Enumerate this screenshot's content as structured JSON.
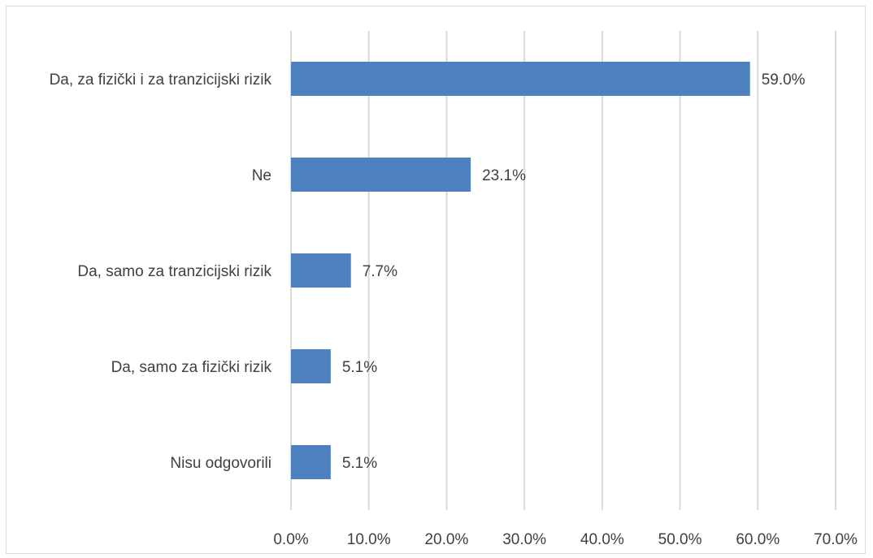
{
  "chart_data": {
    "type": "bar",
    "orientation": "horizontal",
    "categories": [
      "Da, za fizički i za tranzicijski rizik",
      "Ne",
      "Da, samo za tranzicijski rizik",
      "Da, samo za fizički rizik",
      "Nisu odgovorili"
    ],
    "values": [
      59.0,
      23.1,
      7.7,
      5.1,
      5.1
    ],
    "data_labels": [
      "59.0%",
      "23.1%",
      "7.7%",
      "5.1%",
      "5.1%"
    ],
    "xlim": [
      0,
      70
    ],
    "x_ticks": [
      0,
      10,
      20,
      30,
      40,
      50,
      60,
      70
    ],
    "x_tick_labels": [
      "0.0%",
      "10.0%",
      "20.0%",
      "30.0%",
      "40.0%",
      "50.0%",
      "60.0%",
      "70.0%"
    ],
    "grid": "vertical",
    "legend": "none",
    "title": "",
    "xlabel": "",
    "ylabel": "",
    "colors": {
      "bar": "#4e81bd",
      "grid": "#d9d9d9",
      "text": "#404040",
      "border": "#d9d9d9"
    }
  }
}
